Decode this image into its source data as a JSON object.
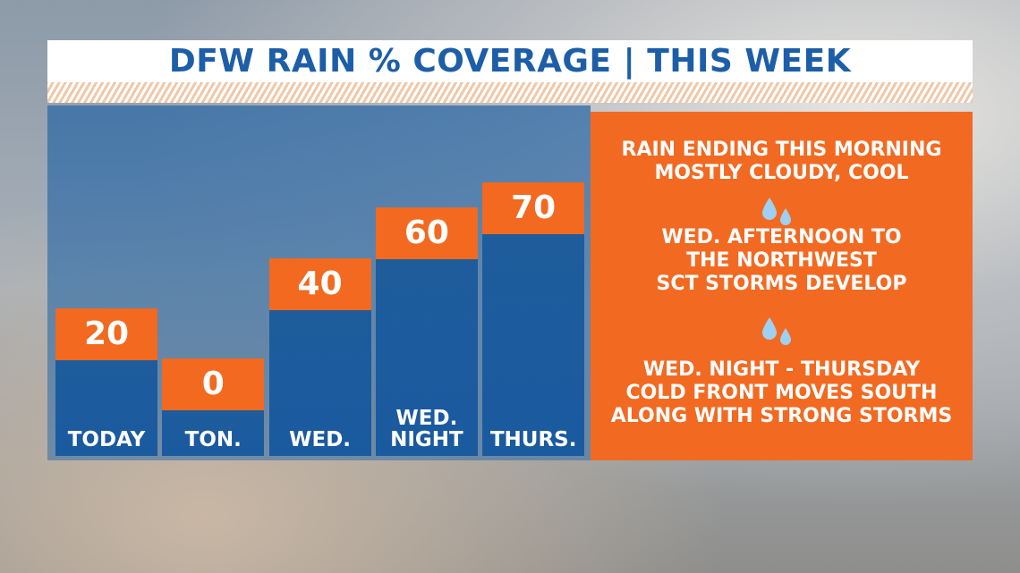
{
  "chart_data": {
    "type": "bar",
    "title": "DFW RAIN % COVERAGE | THIS WEEK",
    "categories": [
      "TODAY",
      "TON.",
      "WED.",
      "WED. NIGHT",
      "THURS."
    ],
    "values": [
      20,
      0,
      40,
      60,
      70
    ],
    "color": "#1e5c9c",
    "label_color": "#f2691f",
    "notes": [
      [
        "RAIN ENDING THIS MORNING",
        "MOSTLY CLOUDY, COOL"
      ],
      [
        "WED. AFTERNOON TO",
        "THE NORTHWEST",
        "SCT STORMS DEVELOP"
      ],
      [
        "WED. NIGHT - THURSDAY",
        "COLD FRONT MOVES SOUTH",
        "ALONG WITH STRONG STORMS"
      ]
    ]
  }
}
